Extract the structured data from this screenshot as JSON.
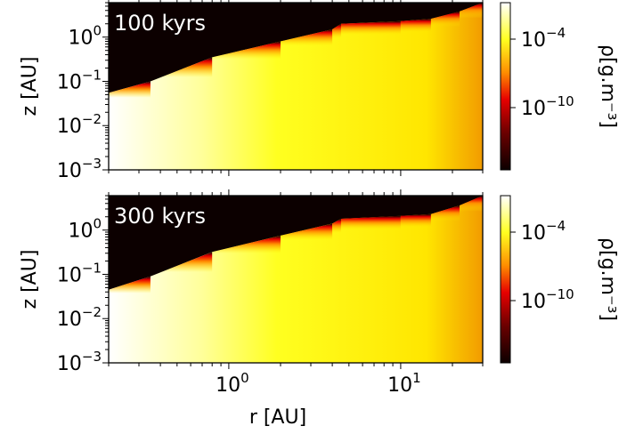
{
  "chart_data": [
    {
      "type": "heatmap",
      "panel_label": "100 kyrs",
      "xlabel": "r [AU]",
      "ylabel": "z [AU]",
      "xscale": "log",
      "yscale": "log",
      "xlim": [
        0.2,
        30
      ],
      "ylim": [
        0.001,
        6
      ],
      "x_ticks": [
        {
          "base": "10",
          "exp": "0"
        },
        {
          "base": "10",
          "exp": "1"
        }
      ],
      "y_ticks": [
        {
          "base": "10",
          "exp": "0"
        },
        {
          "base": "10",
          "exp": "−1"
        },
        {
          "base": "10",
          "exp": "−2"
        },
        {
          "base": "10",
          "exp": "−3"
        }
      ],
      "surface_boundary": {
        "r": [
          0.2,
          0.35,
          0.8,
          2.0,
          4.0,
          4.5,
          10,
          15,
          22,
          30
        ],
        "z": [
          0.055,
          0.1,
          0.35,
          0.8,
          1.5,
          2.0,
          2.3,
          2.6,
          3.8,
          6.0
        ]
      },
      "colorbar": {
        "label": "ρ[g.m⁻³]",
        "scale": "log",
        "ticks": [
          {
            "base": "10",
            "exp": "−4"
          },
          {
            "base": "10",
            "exp": "−10"
          }
        ]
      }
    },
    {
      "type": "heatmap",
      "panel_label": "300 kyrs",
      "xlabel": "r [AU]",
      "ylabel": "z [AU]",
      "xscale": "log",
      "yscale": "log",
      "xlim": [
        0.2,
        30
      ],
      "ylim": [
        0.001,
        6
      ],
      "x_ticks": [
        {
          "base": "10",
          "exp": "0"
        },
        {
          "base": "10",
          "exp": "1"
        }
      ],
      "y_ticks": [
        {
          "base": "10",
          "exp": "0"
        },
        {
          "base": "10",
          "exp": "−1"
        },
        {
          "base": "10",
          "exp": "−2"
        },
        {
          "base": "10",
          "exp": "−3"
        }
      ],
      "surface_boundary": {
        "r": [
          0.2,
          0.35,
          0.8,
          2.0,
          4.0,
          4.5,
          10,
          15,
          22,
          30
        ],
        "z": [
          0.045,
          0.09,
          0.32,
          0.75,
          1.4,
          1.8,
          2.1,
          2.3,
          3.6,
          6.0
        ]
      },
      "colorbar": {
        "label": "ρ[g.m⁻³]",
        "scale": "log",
        "ticks": [
          {
            "base": "10",
            "exp": "−4"
          },
          {
            "base": "10",
            "exp": "−10"
          }
        ]
      }
    }
  ],
  "colors": {
    "empty": "#0c0000",
    "red": "#e60000",
    "orange": "#ff8c00",
    "yellow": "#ffff20",
    "white": "#ffffff",
    "deep_orange": "#f29b00"
  }
}
